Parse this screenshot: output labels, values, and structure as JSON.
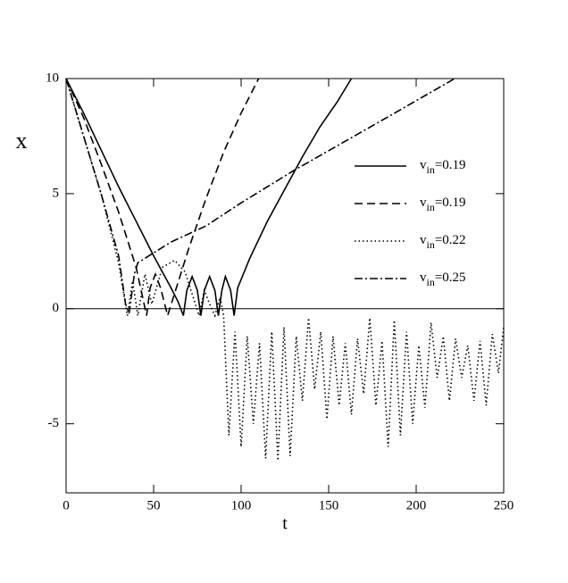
{
  "chart_data": {
    "type": "line",
    "x_label": "t",
    "y_label": "x",
    "xlim": [
      0,
      250
    ],
    "xticks": [
      0,
      50,
      100,
      150,
      200,
      250
    ],
    "ylim": [
      -8,
      10
    ],
    "yticks": [
      -5,
      0,
      5,
      10
    ],
    "grid": false,
    "zero_line": true,
    "legend": "right",
    "series": [
      {
        "name": "vin=0.19",
        "color": "#000000",
        "style": "solid",
        "x": [
          0,
          10,
          20,
          30,
          40,
          50,
          60,
          64,
          67,
          69,
          72,
          75,
          77,
          79,
          82,
          85,
          87,
          89,
          91,
          94,
          96,
          98,
          105,
          115,
          125,
          135,
          145,
          155,
          163
        ],
        "values": [
          10,
          8.5,
          6.9,
          5.3,
          3.8,
          2.3,
          0.9,
          0.3,
          -0.3,
          0.8,
          1.4,
          0.8,
          -0.3,
          0.8,
          1.4,
          0.8,
          -0.3,
          0.8,
          1.4,
          0.8,
          -0.3,
          0.9,
          2.2,
          3.8,
          5.2,
          6.6,
          7.9,
          9,
          10
        ]
      },
      {
        "name": "vin=0.19",
        "color": "#000000",
        "style": "dashed",
        "x": [
          0,
          10,
          20,
          30,
          40,
          46,
          48,
          51,
          54,
          58,
          70,
          80,
          90,
          100,
          110
        ],
        "values": [
          10,
          8.3,
          6.3,
          4.2,
          1.8,
          -0.3,
          0.9,
          1.5,
          0.9,
          -0.3,
          2.6,
          4.8,
          6.8,
          8.5,
          10
        ]
      },
      {
        "name": "vin=0.22",
        "color": "#000000",
        "style": "dotted",
        "x": [
          0,
          10,
          20,
          30,
          35,
          38,
          41,
          45,
          49,
          55,
          62,
          68,
          73,
          76,
          79,
          82,
          85,
          88,
          90,
          93,
          96.5,
          100,
          103.5,
          107,
          110.5,
          114,
          117.5,
          121,
          124.5,
          128,
          131.5,
          135,
          138.5,
          142,
          145.5,
          149,
          152.5,
          156,
          159.5,
          163,
          166.5,
          170,
          173.5,
          177,
          180.5,
          184,
          187.5,
          191,
          194.5,
          198,
          201.5,
          205,
          208.5,
          212,
          215.5,
          219,
          222.5,
          226,
          229.5,
          233,
          236.5,
          240,
          243.5,
          247,
          250
        ],
        "values": [
          10,
          7.5,
          5,
          2,
          -0.3,
          1.2,
          -0.3,
          1.5,
          0.2,
          1.8,
          2.1,
          1.6,
          0.4,
          -0.3,
          0.8,
          0.2,
          -0.3,
          0.5,
          -0.3,
          -5.5,
          -1.0,
          -6.0,
          -1.2,
          -5.0,
          -1.5,
          -6.5,
          -1.0,
          -6.6,
          -0.8,
          -6.4,
          -1.2,
          -4.0,
          -0.4,
          -3.5,
          -1.0,
          -4.8,
          -1.2,
          -4.2,
          -1.5,
          -4.6,
          -1.3,
          -3.7,
          -0.4,
          -4.2,
          -1.4,
          -6.0,
          -0.5,
          -5.5,
          -1.0,
          -5.0,
          -1.6,
          -4.3,
          -0.6,
          -3.0,
          -1.2,
          -4.0,
          -1.3,
          -3.0,
          -1.6,
          -4.0,
          -1.4,
          -4.2,
          -1.1,
          -2.8,
          -0.8
        ]
      },
      {
        "name": "vin=0.25",
        "color": "#000000",
        "style": "dashdot",
        "x": [
          0,
          10,
          20,
          30,
          34,
          36,
          39,
          41,
          60,
          80,
          100,
          130,
          160,
          190,
          222
        ],
        "values": [
          10,
          7.5,
          5,
          2.3,
          0.2,
          -0.2,
          1.5,
          2,
          2.9,
          3.6,
          4.6,
          6,
          7.3,
          8.6,
          10
        ]
      }
    ]
  }
}
